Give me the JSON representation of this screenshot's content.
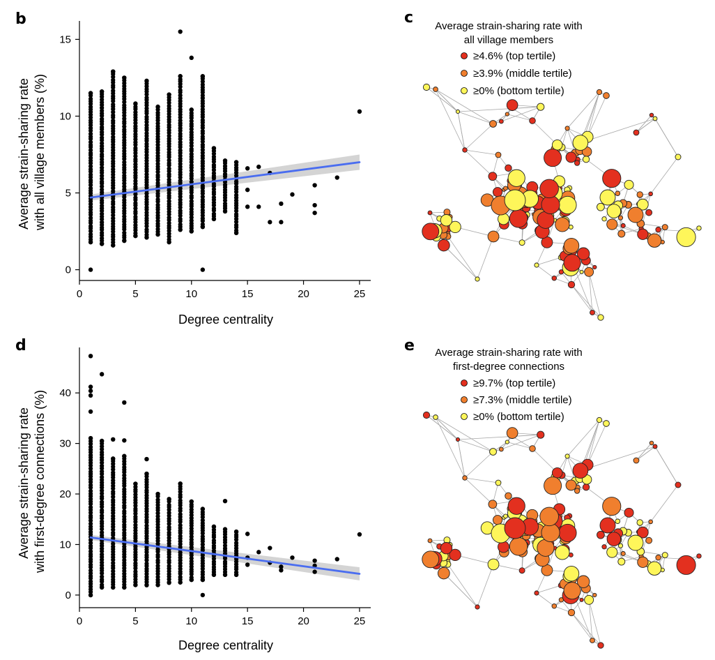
{
  "colors": {
    "top": "#e3301f",
    "middle": "#f07f2e",
    "bottom": "#fef65a",
    "trend": "#4a6df0",
    "band": "#cfcfcf",
    "edge": "#a8a8a8"
  },
  "chart_data": [
    {
      "panel": "b",
      "type": "scatter",
      "xlabel": "Degree centrality",
      "ylabel_lines": [
        "Average strain-sharing rate",
        "with all village members (%)"
      ],
      "xlim": [
        0,
        26
      ],
      "ylim": [
        -0.7,
        16.2
      ],
      "xticks": [
        0,
        5,
        10,
        15,
        20,
        25
      ],
      "yticks": [
        0,
        5,
        10,
        15
      ],
      "column_ranges": [
        {
          "x": 1,
          "min": 1.8,
          "max": 11.5
        },
        {
          "x": 2,
          "min": 1.7,
          "max": 11.6
        },
        {
          "x": 3,
          "min": 1.6,
          "max": 12.9
        },
        {
          "x": 4,
          "min": 1.9,
          "max": 12.5
        },
        {
          "x": 5,
          "min": 2.2,
          "max": 10.8
        },
        {
          "x": 6,
          "min": 2.1,
          "max": 12.3
        },
        {
          "x": 7,
          "min": 2.3,
          "max": 10.6
        },
        {
          "x": 8,
          "min": 1.8,
          "max": 11.4
        },
        {
          "x": 9,
          "min": 2.6,
          "max": 12.6
        },
        {
          "x": 10,
          "min": 2.5,
          "max": 10.4
        },
        {
          "x": 11,
          "min": 2.8,
          "max": 12.6
        },
        {
          "x": 12,
          "min": 3.3,
          "max": 7.9
        },
        {
          "x": 13,
          "min": 3.8,
          "max": 7.1
        },
        {
          "x": 14,
          "min": 2.4,
          "max": 7.0
        }
      ],
      "extra_points": [
        {
          "x": 1,
          "y": 0
        },
        {
          "x": 11,
          "y": 0
        },
        {
          "x": 9,
          "y": 15.5
        },
        {
          "x": 10,
          "y": 13.8
        },
        {
          "x": 3,
          "y": 12.9
        },
        {
          "x": 15,
          "y": 4.1
        },
        {
          "x": 15,
          "y": 5.2
        },
        {
          "x": 15,
          "y": 6.6
        },
        {
          "x": 16,
          "y": 4.1
        },
        {
          "x": 16,
          "y": 6.7
        },
        {
          "x": 17,
          "y": 3.1
        },
        {
          "x": 17,
          "y": 6.3
        },
        {
          "x": 18,
          "y": 3.1
        },
        {
          "x": 18,
          "y": 4.3
        },
        {
          "x": 19,
          "y": 4.9
        },
        {
          "x": 21,
          "y": 4.2
        },
        {
          "x": 21,
          "y": 3.7
        },
        {
          "x": 21,
          "y": 5.5
        },
        {
          "x": 23,
          "y": 6.0
        },
        {
          "x": 25,
          "y": 10.3
        }
      ],
      "trend": {
        "x": [
          1,
          25
        ],
        "y": [
          4.7,
          7.0
        ],
        "ci_low": [
          4.5,
          6.5
        ],
        "ci_high": [
          4.9,
          7.5
        ]
      }
    },
    {
      "panel": "d",
      "type": "scatter",
      "xlabel": "Degree centrality",
      "ylabel_lines": [
        "Average strain-sharing rate",
        "with first-degree connections (%)"
      ],
      "xlim": [
        0,
        26
      ],
      "ylim": [
        -2.5,
        49
      ],
      "xticks": [
        0,
        5,
        10,
        15,
        20,
        25
      ],
      "yticks": [
        0,
        10,
        20,
        30,
        40
      ],
      "column_ranges": [
        {
          "x": 1,
          "min": 0,
          "max": 31
        },
        {
          "x": 2,
          "min": 1.5,
          "max": 30.5
        },
        {
          "x": 3,
          "min": 1.5,
          "max": 27
        },
        {
          "x": 4,
          "min": 1.5,
          "max": 27.5
        },
        {
          "x": 5,
          "min": 2,
          "max": 22
        },
        {
          "x": 6,
          "min": 2,
          "max": 24
        },
        {
          "x": 7,
          "min": 2,
          "max": 20
        },
        {
          "x": 8,
          "min": 2.5,
          "max": 19
        },
        {
          "x": 9,
          "min": 2.5,
          "max": 22
        },
        {
          "x": 10,
          "min": 3,
          "max": 18.5
        },
        {
          "x": 11,
          "min": 3,
          "max": 17
        },
        {
          "x": 12,
          "min": 4,
          "max": 13.5
        },
        {
          "x": 13,
          "min": 4,
          "max": 13
        },
        {
          "x": 14,
          "min": 4,
          "max": 12.5
        }
      ],
      "extra_points": [
        {
          "x": 1,
          "y": 47.3
        },
        {
          "x": 1,
          "y": 41.2
        },
        {
          "x": 1,
          "y": 40.4
        },
        {
          "x": 1,
          "y": 39.5
        },
        {
          "x": 1,
          "y": 36.3
        },
        {
          "x": 2,
          "y": 43.7
        },
        {
          "x": 4,
          "y": 38.1
        },
        {
          "x": 3,
          "y": 30.8
        },
        {
          "x": 4,
          "y": 30.6
        },
        {
          "x": 6,
          "y": 26.9
        },
        {
          "x": 11,
          "y": 0
        },
        {
          "x": 13,
          "y": 18.6
        },
        {
          "x": 15,
          "y": 12.1
        },
        {
          "x": 15,
          "y": 7.4
        },
        {
          "x": 15,
          "y": 6.0
        },
        {
          "x": 16,
          "y": 8.5
        },
        {
          "x": 17,
          "y": 9.3
        },
        {
          "x": 17,
          "y": 6.4
        },
        {
          "x": 18,
          "y": 5.6
        },
        {
          "x": 18,
          "y": 4.9
        },
        {
          "x": 19,
          "y": 7.4
        },
        {
          "x": 21,
          "y": 6.8
        },
        {
          "x": 21,
          "y": 5.8
        },
        {
          "x": 21,
          "y": 4.6
        },
        {
          "x": 23,
          "y": 7.1
        },
        {
          "x": 25,
          "y": 12.0
        }
      ],
      "trend": {
        "x": [
          1,
          25
        ],
        "y": [
          11.4,
          4.2
        ],
        "ci_low": [
          10.9,
          2.9
        ],
        "ci_high": [
          11.9,
          5.5
        ]
      }
    },
    {
      "panel": "c",
      "type": "network",
      "legend_title_lines": [
        "Average strain-sharing rate with",
        "all village members"
      ],
      "legend": [
        {
          "label": "≥4.6% (top tertile)",
          "tier": "top"
        },
        {
          "label": "≥3.9% (middle tertile)",
          "tier": "middle"
        },
        {
          "label": "≥0% (bottom tertile)",
          "tier": "bottom"
        }
      ],
      "tier_shift": 0
    },
    {
      "panel": "e",
      "type": "network",
      "legend_title_lines": [
        "Average strain-sharing rate with",
        "first-degree connections"
      ],
      "legend": [
        {
          "label": "≥9.7% (top tertile)",
          "tier": "top"
        },
        {
          "label": "≥7.3% (middle tertile)",
          "tier": "middle"
        },
        {
          "label": "≥0% (bottom tertile)",
          "tier": "bottom"
        }
      ],
      "tier_shift": 1
    }
  ]
}
